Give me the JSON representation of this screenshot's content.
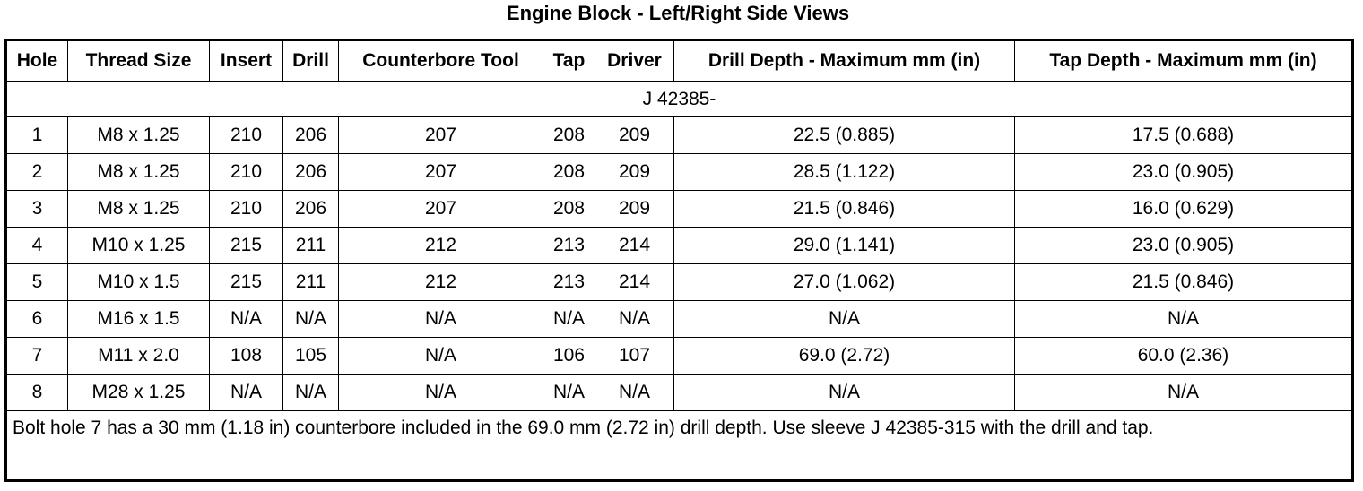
{
  "title": "Engine Block - Left/Right Side Views",
  "table": {
    "headers": [
      "Hole",
      "Thread Size",
      "Insert",
      "Drill",
      "Counterbore Tool",
      "Tap",
      "Driver",
      "Drill Depth - Maximum mm (in)",
      "Tap Depth - Maximum mm (in)"
    ],
    "group_label": "J 42385-",
    "rows": [
      [
        "1",
        "M8 x 1.25",
        "210",
        "206",
        "207",
        "208",
        "209",
        "22.5 (0.885)",
        "17.5 (0.688)"
      ],
      [
        "2",
        "M8 x 1.25",
        "210",
        "206",
        "207",
        "208",
        "209",
        "28.5 (1.122)",
        "23.0 (0.905)"
      ],
      [
        "3",
        "M8 x 1.25",
        "210",
        "206",
        "207",
        "208",
        "209",
        "21.5 (0.846)",
        "16.0 (0.629)"
      ],
      [
        "4",
        "M10 x 1.25",
        "215",
        "211",
        "212",
        "213",
        "214",
        "29.0 (1.141)",
        "23.0 (0.905)"
      ],
      [
        "5",
        "M10 x 1.5",
        "215",
        "211",
        "212",
        "213",
        "214",
        "27.0 (1.062)",
        "21.5 (0.846)"
      ],
      [
        "6",
        "M16 x 1.5",
        "N/A",
        "N/A",
        "N/A",
        "N/A",
        "N/A",
        "N/A",
        "N/A"
      ],
      [
        "7",
        "M11 x 2.0",
        "108",
        "105",
        "N/A",
        "106",
        "107",
        "69.0 (2.72)",
        "60.0 (2.36)"
      ],
      [
        "8",
        "M28 x 1.25",
        "N/A",
        "N/A",
        "N/A",
        "N/A",
        "N/A",
        "N/A",
        "N/A"
      ]
    ],
    "note": "Bolt hole 7 has a 30 mm (1.18 in) counterbore included in the 69.0 mm (2.72 in) drill depth. Use sleeve J 42385-315 with the drill and tap."
  }
}
